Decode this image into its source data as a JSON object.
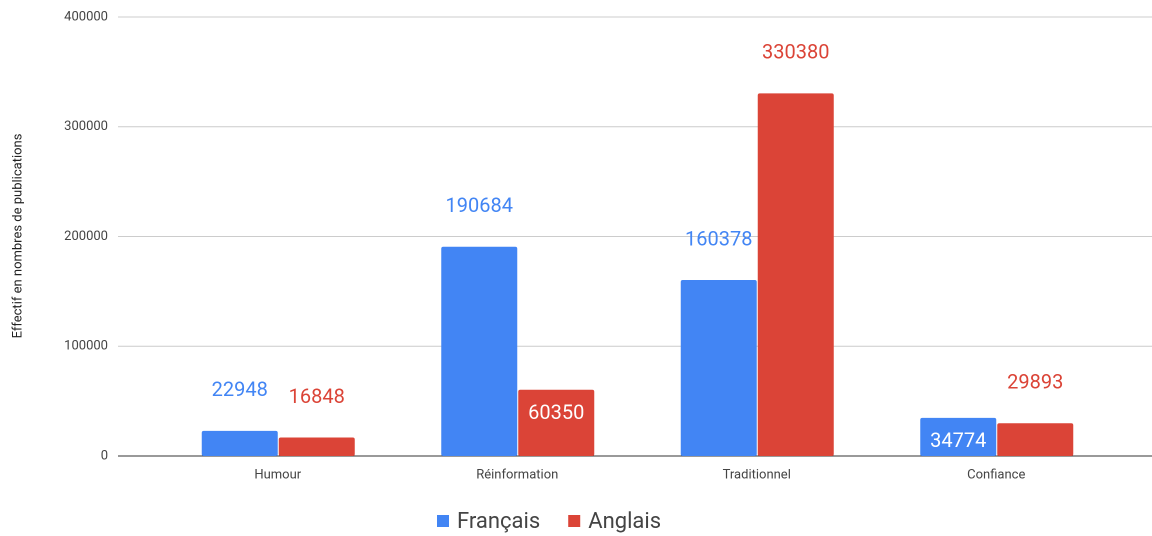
{
  "chart_data": {
    "type": "bar",
    "y_axis_label": "Effectif en nombres de publications",
    "categories": [
      "Humour",
      "Réinformation",
      "Traditionnel",
      "Confiance"
    ],
    "series": [
      {
        "name": "Français",
        "color": "#4285f4",
        "values": [
          22948,
          190684,
          160378,
          34774
        ]
      },
      {
        "name": "Anglais",
        "color": "#db4437",
        "values": [
          16848,
          60350,
          330380,
          29893
        ]
      }
    ],
    "ylim": [
      0,
      400000
    ],
    "yticks": [
      0,
      100000,
      200000,
      300000,
      400000
    ],
    "grid": true,
    "legend": "bottom"
  }
}
